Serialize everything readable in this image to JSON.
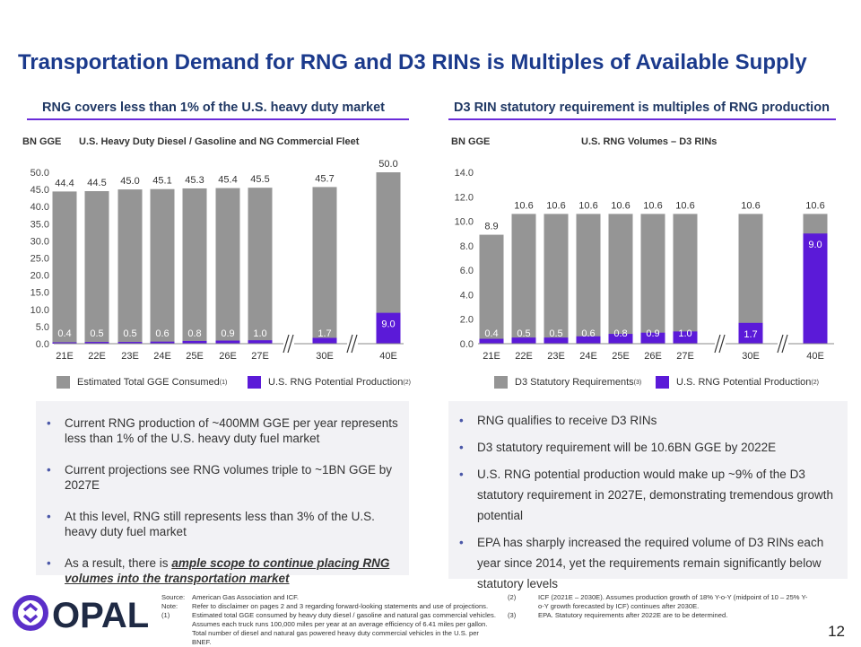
{
  "title": "Transportation Demand for RNG and D3 RINs is Multiples of Available Supply",
  "left": {
    "subtitle": "RNG covers less than 1% of the U.S. heavy duty market",
    "unit": "BN GGE",
    "chart_title": "U.S. Heavy Duty Diesel / Gasoline and NG Commercial Fleet",
    "bullets": [
      "Current RNG production of ~400MM GGE per year represents less than 1% of the U.S. heavy duty fuel market",
      "Current projections see RNG volumes triple to ~1BN GGE by 2027E",
      "At this level, RNG still represents less than 3% of the U.S. heavy duty fuel market"
    ],
    "bullet4_pre": "As a result, there is ",
    "bullet4_em": "ample scope to continue placing RNG volumes into the transportation market"
  },
  "right": {
    "subtitle": "D3 RIN statutory requirement is multiples of RNG production",
    "unit": "BN GGE",
    "chart_title": "U.S. RNG Volumes – D3 RINs",
    "bullets": [
      "RNG qualifies to receive D3 RINs",
      "D3 statutory requirement will be 10.6BN GGE by 2022E",
      "U.S. RNG potential production would make up ~9% of the D3 statutory requirement in 2027E, demonstrating tremendous growth potential",
      "EPA has sharply increased the required volume of D3 RINs each year since 2014, yet the requirements remain significantly below statutory levels"
    ]
  },
  "chart_data": [
    {
      "type": "bar",
      "stacking": "overlap",
      "categories": [
        "21E",
        "22E",
        "23E",
        "24E",
        "25E",
        "26E",
        "27E",
        "30E",
        "40E"
      ],
      "axis_breaks": [
        "27E-30E",
        "30E-40E"
      ],
      "ylim": [
        0,
        50
      ],
      "yticks": [
        "0.0",
        "5.0",
        "10.0",
        "15.0",
        "20.0",
        "25.0",
        "30.0",
        "35.0",
        "40.0",
        "45.0",
        "50.0"
      ],
      "series": [
        {
          "name": "Estimated Total GGE Consumed",
          "footnote": "(1)",
          "color": "#959595",
          "values": [
            44.4,
            44.5,
            45.0,
            45.1,
            45.3,
            45.4,
            45.5,
            45.7,
            50.0
          ],
          "labels": [
            "44.4",
            "44.5",
            "45.0",
            "45.1",
            "45.3",
            "45.4",
            "45.5",
            "45.7",
            "50.0"
          ]
        },
        {
          "name": "U.S. RNG Potential Production",
          "footnote": "(2)",
          "color": "#5b1ad8",
          "values": [
            0.4,
            0.5,
            0.5,
            0.6,
            0.8,
            0.9,
            1.0,
            1.7,
            9.0
          ],
          "labels": [
            "0.4",
            "0.5",
            "0.5",
            "0.6",
            "0.8",
            "0.9",
            "1.0",
            "1.7",
            "9.0"
          ]
        }
      ]
    },
    {
      "type": "bar",
      "stacking": "overlap",
      "categories": [
        "21E",
        "22E",
        "23E",
        "24E",
        "25E",
        "26E",
        "27E",
        "30E",
        "40E"
      ],
      "axis_breaks": [
        "27E-30E",
        "30E-40E"
      ],
      "ylim": [
        0,
        14
      ],
      "yticks": [
        "0.0",
        "2.0",
        "4.0",
        "6.0",
        "8.0",
        "10.0",
        "12.0",
        "14.0"
      ],
      "series": [
        {
          "name": "D3 Statutory Requirements",
          "footnote": "(3)",
          "color": "#959595",
          "values": [
            8.9,
            10.6,
            10.6,
            10.6,
            10.6,
            10.6,
            10.6,
            10.6,
            10.6
          ],
          "labels": [
            "8.9",
            "10.6",
            "10.6",
            "10.6",
            "10.6",
            "10.6",
            "10.6",
            "10.6",
            "10.6"
          ]
        },
        {
          "name": "U.S. RNG Potential Production",
          "footnote": "(2)",
          "color": "#5b1ad8",
          "values": [
            0.4,
            0.5,
            0.5,
            0.6,
            0.8,
            0.9,
            1.0,
            1.7,
            9.0
          ],
          "labels": [
            "0.4",
            "0.5",
            "0.5",
            "0.6",
            "0.8",
            "0.9",
            "1.0",
            "1.7",
            "9.0"
          ]
        }
      ]
    }
  ],
  "footer": {
    "source_k": "Source:",
    "source": "American Gas Association and ICF.",
    "note_k": "Note:",
    "note": "Refer to disclaimer on pages 2 and 3 regarding forward-looking statements and use of projections.",
    "f1_k": "(1)",
    "f1": "Estimated total GGE consumed by heavy duty diesel / gasoline and natural gas commercial vehicles. Assumes each truck runs 100,000 miles per year at an average efficiency of 6.41 miles per gallon. Total number of diesel and natural gas powered heavy duty commercial vehicles in the U.S. per BNEF.",
    "f2_k": "(2)",
    "f2": "ICF (2021E – 2030E). Assumes production growth of 18% Y-o-Y (midpoint of 10 – 25% Y-o-Y growth forecasted by ICF) continues after 2030E.",
    "f3_k": "(3)",
    "f3": "EPA. Statutory requirements after 2022E are to be determined."
  },
  "logo": {
    "text": "OPAL",
    "color": "#5b2fc9"
  },
  "page_number": "12"
}
